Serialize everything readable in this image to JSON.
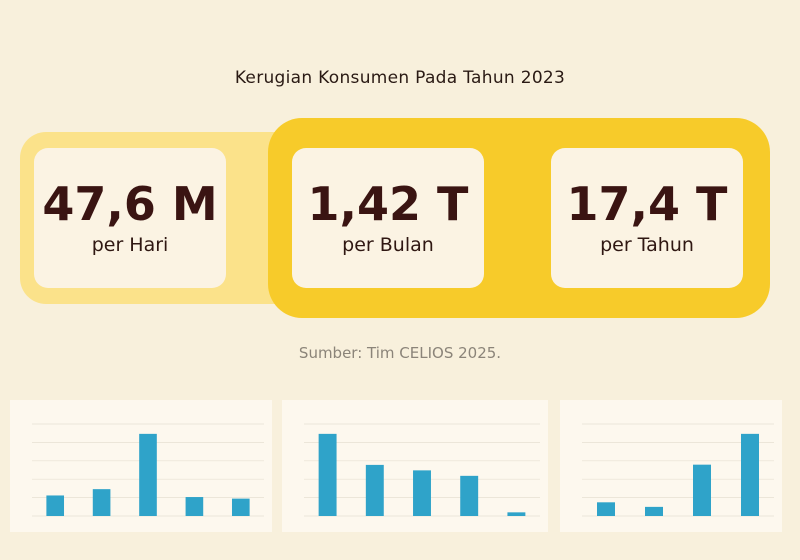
{
  "title": "Kerugian Konsumen Pada Tahun 2023",
  "stats": [
    {
      "value": "47,6 M",
      "unit": "per Hari"
    },
    {
      "value": "1,42 T",
      "unit": "per Bulan"
    },
    {
      "value": "17,4 T",
      "unit": "per Tahun"
    }
  ],
  "source": "Sumber: Tim CELIOS 2025.",
  "colors": {
    "background": "#f8f0dc",
    "band_light": "#fbe28a",
    "band_strong": "#f7cb2a",
    "card": "#fbf3e3",
    "bar": "#2fa3c9",
    "value_text": "#3a1412"
  },
  "chart_data": [
    {
      "type": "bar",
      "categories": [
        "",
        "",
        "",
        "",
        ""
      ],
      "values": [
        13,
        17,
        52,
        12,
        11
      ]
    },
    {
      "type": "bar",
      "categories": [
        "",
        "",
        "",
        "",
        ""
      ],
      "values": [
        45,
        28,
        25,
        22,
        2
      ]
    },
    {
      "type": "bar",
      "categories": [
        "",
        "",
        "",
        ""
      ],
      "values": [
        12,
        8,
        45,
        72
      ]
    }
  ]
}
